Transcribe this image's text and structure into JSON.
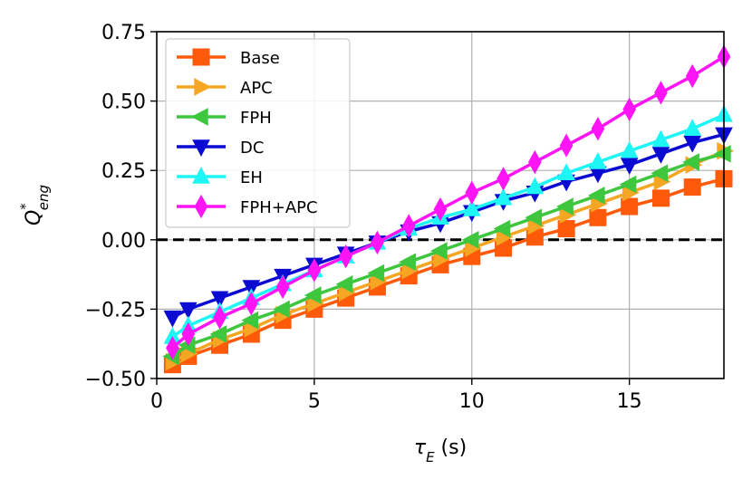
{
  "chart_data": {
    "type": "line",
    "title": "",
    "xlabel": {
      "base": "τ",
      "sub": "E",
      "suffix": " (s)"
    },
    "ylabel": {
      "base": "Q",
      "sup": "*",
      "sub": "eng"
    },
    "xlim": [
      0,
      18
    ],
    "ylim": [
      -0.5,
      0.75
    ],
    "xticks": [
      0,
      5,
      10,
      15
    ],
    "xtick_labels": [
      "0",
      "5",
      "10",
      "15"
    ],
    "yticks": [
      -0.5,
      -0.25,
      0.0,
      0.25,
      0.5,
      0.75
    ],
    "ytick_labels": [
      "−0.50",
      "−0.25",
      "0.00",
      "0.25",
      "0.50",
      "0.75"
    ],
    "grid": true,
    "legend_position": "top-left",
    "reference_line": {
      "y": 0.0,
      "style": "dashed",
      "color": "#000000"
    },
    "x": [
      0.5,
      1,
      2,
      3,
      4,
      5,
      6,
      7,
      8,
      9,
      10,
      11,
      12,
      13,
      14,
      15,
      16,
      17,
      18
    ],
    "series": [
      {
        "name": "Base",
        "color": "#ff5a0a",
        "marker": "square",
        "values": [
          -0.45,
          -0.42,
          -0.38,
          -0.34,
          -0.29,
          -0.25,
          -0.21,
          -0.17,
          -0.13,
          -0.09,
          -0.06,
          -0.03,
          0.01,
          0.04,
          0.08,
          0.12,
          0.15,
          0.19,
          0.22
        ]
      },
      {
        "name": "APC",
        "color": "#f5a623",
        "marker": "triangle-right",
        "values": [
          -0.44,
          -0.41,
          -0.36,
          -0.32,
          -0.27,
          -0.23,
          -0.19,
          -0.15,
          -0.11,
          -0.07,
          -0.03,
          0.01,
          0.05,
          0.09,
          0.13,
          0.17,
          0.21,
          0.27,
          0.32
        ]
      },
      {
        "name": "FPH",
        "color": "#3ec63e",
        "marker": "triangle-left",
        "values": [
          -0.42,
          -0.38,
          -0.34,
          -0.29,
          -0.25,
          -0.2,
          -0.16,
          -0.12,
          -0.08,
          -0.04,
          0.0,
          0.04,
          0.08,
          0.12,
          0.16,
          0.2,
          0.24,
          0.28,
          0.31
        ]
      },
      {
        "name": "DC",
        "color": "#0a0ad2",
        "marker": "triangle-down",
        "values": [
          -0.28,
          -0.25,
          -0.21,
          -0.17,
          -0.13,
          -0.09,
          -0.05,
          -0.01,
          0.03,
          0.06,
          0.1,
          0.14,
          0.17,
          0.21,
          0.24,
          0.27,
          0.31,
          0.35,
          0.38
        ]
      },
      {
        "name": "EH",
        "color": "#1ef5f5",
        "marker": "triangle-up",
        "values": [
          -0.35,
          -0.31,
          -0.26,
          -0.21,
          -0.16,
          -0.11,
          -0.06,
          -0.01,
          0.04,
          0.08,
          0.11,
          0.15,
          0.19,
          0.24,
          0.28,
          0.32,
          0.36,
          0.4,
          0.45
        ]
      },
      {
        "name": "FPH+APC",
        "color": "#ff14f5",
        "marker": "diamond",
        "values": [
          -0.39,
          -0.34,
          -0.28,
          -0.23,
          -0.17,
          -0.11,
          -0.06,
          -0.01,
          0.05,
          0.11,
          0.17,
          0.22,
          0.28,
          0.34,
          0.4,
          0.47,
          0.53,
          0.59,
          0.66
        ]
      }
    ]
  }
}
